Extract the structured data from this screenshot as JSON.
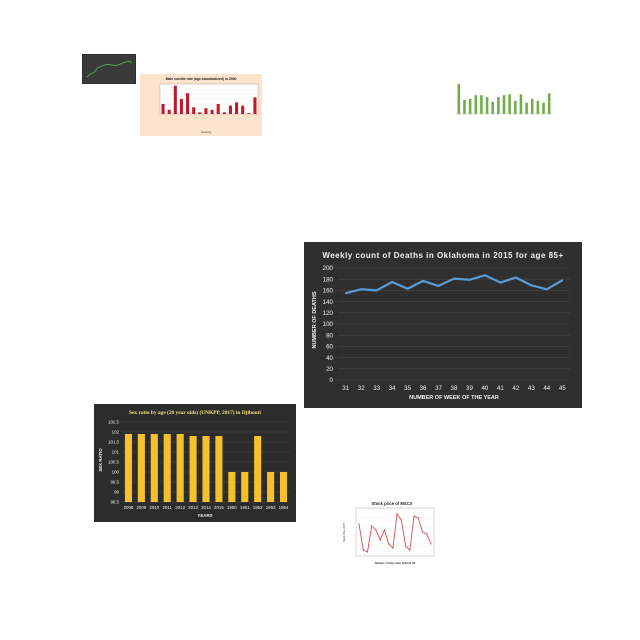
{
  "chart_data": [
    {
      "id": "weekly",
      "type": "line",
      "title": "Weekly count of Deaths in Oklahoma in 2015 for age 85+",
      "xlabel": "NUMBER OF WEEK OF THE YEAR",
      "ylabel": "NUMBER OF DEATHS",
      "categories": [
        "31",
        "32",
        "33",
        "34",
        "35",
        "36",
        "37",
        "38",
        "39",
        "40",
        "41",
        "42",
        "43",
        "44",
        "45"
      ],
      "series": [
        {
          "values": [
            155,
            162,
            160,
            175,
            163,
            177,
            168,
            181,
            179,
            187,
            174,
            183,
            169,
            162,
            178
          ]
        }
      ],
      "ylim": [
        0,
        200
      ],
      "yticks": [
        "0",
        "20",
        "40",
        "60",
        "80",
        "100",
        "120",
        "140",
        "160",
        "180",
        "200"
      ],
      "grid": true,
      "colors": {
        "background": "#2f2f2f",
        "line": "#5b9bd5",
        "text": "#f2f2f2",
        "grid": "#474747"
      }
    },
    {
      "id": "sexratio",
      "type": "bar",
      "title": "Sex ratio by age (20 year olds) (UNKPP, 2017) in Djibouti",
      "xlabel": "YEARS",
      "ylabel": "SEX RATIO",
      "categories": [
        "2008",
        "2009",
        "2010",
        "2011",
        "2012",
        "2013",
        "2014",
        "2015",
        "1950",
        "1951",
        "1952",
        "1953",
        "1954"
      ],
      "values": [
        101.9,
        101.9,
        101.9,
        101.9,
        101.9,
        101.8,
        101.8,
        101.8,
        100,
        100,
        101.8,
        100,
        100
      ],
      "ylim": [
        98.5,
        102.5
      ],
      "yticks": [
        "98.5",
        "99",
        "99.5",
        "100",
        "100.5",
        "101",
        "101.5",
        "102",
        "102.5"
      ],
      "grid": true,
      "colors": {
        "background": "#2c2c2c",
        "bar": "#f4c12a",
        "text": "#f0f0f0",
        "title": "#f6e07a",
        "grid": "#474747"
      }
    },
    {
      "id": "stock",
      "type": "line",
      "title": "Stock price of MSCX",
      "xlabel": "Number of Days after 2012-02-08",
      "ylabel": "Stock Price (NMY)",
      "series": [
        {
          "values": [
            28.5,
            27.2,
            27.1,
            28.4,
            28.2,
            27.7,
            28.2,
            27.5,
            27.3,
            29.0,
            28.7,
            27.4,
            27.2,
            28.9,
            28.8,
            28.1,
            28.0,
            27.5
          ]
        }
      ],
      "ylim": [
        27.0,
        29.2
      ],
      "grid": true,
      "colors": {
        "line": "#d93b3b",
        "background": "#ffffff"
      }
    },
    {
      "id": "suicide",
      "type": "bar",
      "title": "Male suicide rate (age-standardized) in 2000",
      "xlabel": "Country",
      "values": [
        12,
        5,
        34,
        18,
        25,
        8,
        2,
        7,
        5,
        12,
        2,
        10,
        14,
        10,
        1,
        20
      ],
      "colors": {
        "bar": "#c0192b",
        "background": "#fbe3cc"
      }
    },
    {
      "id": "green",
      "type": "bar",
      "title": "",
      "values": [
        32,
        15,
        16,
        20,
        20,
        18,
        13,
        18,
        20,
        21,
        14,
        21,
        12,
        16,
        14,
        12,
        22
      ],
      "colors": {
        "bar": "#70ad47",
        "background": "#ffffff"
      }
    },
    {
      "id": "thumb",
      "type": "line",
      "title": "",
      "series": [
        {
          "values": [
            3,
            4,
            4.5,
            6,
            6.5,
            7,
            7.2,
            7,
            6.8,
            7,
            7.5,
            8,
            8.2,
            7.9
          ]
        }
      ],
      "colors": {
        "line": "#4caf50",
        "background": "#3a3a3a"
      }
    }
  ]
}
